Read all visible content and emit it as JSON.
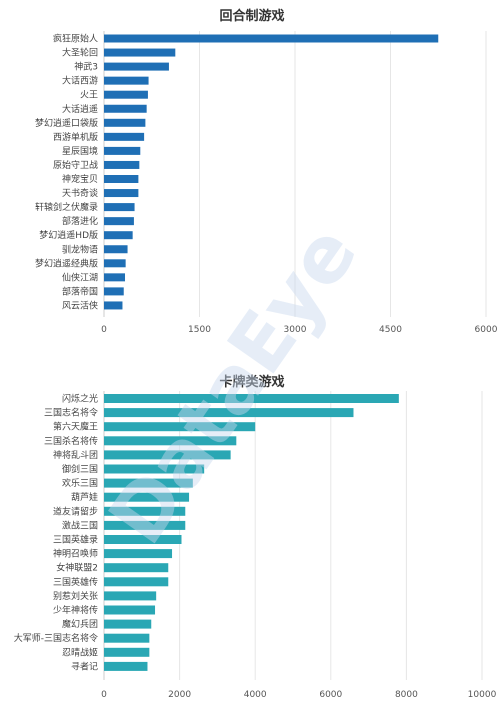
{
  "watermark": "DataEye",
  "chart_data": [
    {
      "type": "bar",
      "orientation": "horizontal",
      "title": "回合制游戏",
      "color": "#1f6fb5",
      "categories": [
        "疯狂原始人",
        "大圣轮回",
        "神武3",
        "大话西游",
        "火王",
        "大话逍遥",
        "梦幻逍遥口袋版",
        "西游单机版",
        "星辰国境",
        "原始守卫战",
        "神宠宝贝",
        "天书奇谈",
        "轩辕剑之伏魔录",
        "部落进化",
        "梦幻逍遥HD版",
        "驯龙物语",
        "梦幻逍遥经典版",
        "仙侠江湖",
        "部落帝国",
        "风云活侠"
      ],
      "values": [
        5250,
        1120,
        1020,
        700,
        690,
        670,
        650,
        630,
        570,
        555,
        540,
        540,
        480,
        470,
        450,
        370,
        340,
        330,
        310,
        290
      ],
      "xlim": [
        0,
        6000
      ],
      "xticks": [
        0,
        1500,
        3000,
        4500,
        6000
      ],
      "grid": true
    },
    {
      "type": "bar",
      "orientation": "horizontal",
      "title": "卡牌类游戏",
      "color": "#2aa7b4",
      "categories": [
        "闪烁之光",
        "三国志名将令",
        "第六天魔王",
        "三国杀名将传",
        "神将乱斗团",
        "御剑三国",
        "欢乐三国",
        "葫芦娃",
        "道友请留步",
        "激战三国",
        "三国英雄录",
        "神明召唤师",
        "女神联盟2",
        "三国英雄传",
        "别惹刘关张",
        "少年神将传",
        "魔幻兵团",
        "大军师-三国志名将令",
        "忍晴战姬",
        "寻者记"
      ],
      "values": [
        7800,
        6600,
        4000,
        3500,
        3350,
        2650,
        2350,
        2250,
        2150,
        2150,
        2050,
        1800,
        1700,
        1700,
        1380,
        1350,
        1250,
        1200,
        1200,
        1150
      ],
      "xlim": [
        0,
        10000
      ],
      "xticks": [
        0,
        2000,
        4000,
        6000,
        8000,
        10000
      ],
      "grid": true
    }
  ]
}
